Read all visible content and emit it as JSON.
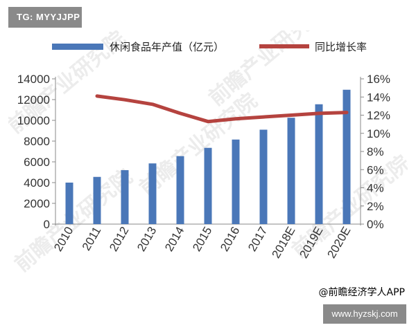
{
  "tag": "TG: MYYJJPP",
  "watermark": "前瞻产业研究院",
  "footer_credit": "@前瞻经济学人APP",
  "url": "www.hyzskj.com",
  "colors": {
    "bar": "#4a77b8",
    "line": "#b5433f",
    "axis": "#888888",
    "tag_bg": "#8a8a8a"
  },
  "chart_data": {
    "type": "bar",
    "categories": [
      "2010",
      "2011",
      "2012",
      "2013",
      "2014",
      "2015",
      "2016",
      "2017",
      "2018E",
      "2019E",
      "2020E"
    ],
    "series": [
      {
        "name": "休闲食品年产值（亿元）",
        "type": "bar",
        "axis": "left",
        "values": [
          4000,
          4550,
          5200,
          5850,
          6550,
          7350,
          8150,
          9100,
          10250,
          11550,
          12950
        ]
      },
      {
        "name": "同比增长率",
        "type": "line",
        "axis": "right",
        "values": [
          null,
          14.1,
          13.7,
          13.2,
          12.2,
          11.3,
          11.6,
          11.8,
          12.0,
          12.2,
          12.3
        ]
      }
    ],
    "left_axis": {
      "ylim": [
        0,
        14000
      ],
      "ticks": [
        "0",
        "2000",
        "4000",
        "6000",
        "8000",
        "10000",
        "12000",
        "14000"
      ]
    },
    "right_axis": {
      "ylim": [
        0,
        16
      ],
      "ticks": [
        "0%",
        "2%",
        "4%",
        "6%",
        "8%",
        "10%",
        "12%",
        "14%",
        "16%"
      ]
    },
    "legend_position": "top"
  }
}
